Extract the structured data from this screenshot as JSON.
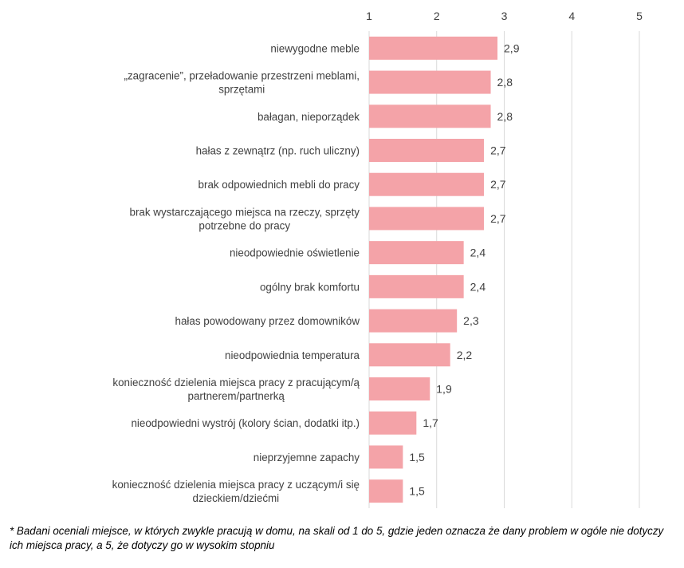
{
  "chart_data": {
    "type": "bar",
    "orientation": "horizontal",
    "categories": [
      "niewygodne meble",
      "„zagracenie”, przeładowanie przestrzeni meblami, sprzętami",
      "bałagan, nieporządek",
      "hałas z zewnątrz (np. ruch uliczny)",
      "brak odpowiednich mebli do pracy",
      "brak wystarczającego miejsca na rzeczy, sprzęty potrzebne do pracy",
      "nieodpowiednie oświetlenie",
      "ogólny brak komfortu",
      "hałas powodowany przez domowników",
      "nieodpowiednia temperatura",
      "konieczność dzielenia miejsca pracy z pracującym/ą partnerem/partnerką",
      "nieodpowiedni wystrój (kolory ścian, dodatki itp.)",
      "nieprzyjemne zapachy",
      "konieczność dzielenia miejsca pracy z uczącym/i się dzieckiem/dziećmi"
    ],
    "values": [
      2.9,
      2.8,
      2.8,
      2.7,
      2.7,
      2.7,
      2.4,
      2.4,
      2.3,
      2.2,
      1.9,
      1.7,
      1.5,
      1.5
    ],
    "value_labels": [
      "2,9",
      "2,8",
      "2,8",
      "2,7",
      "2,7",
      "2,7",
      "2,4",
      "2,4",
      "2,3",
      "2,2",
      "1,9",
      "1,7",
      "1,5",
      "1,5"
    ],
    "category_lines": [
      [
        "niewygodne meble"
      ],
      [
        "„zagracenie”, przeładowanie przestrzeni meblami,",
        "sprzętami"
      ],
      [
        "bałagan, nieporządek"
      ],
      [
        "hałas z zewnątrz (np. ruch uliczny)"
      ],
      [
        "brak odpowiednich mebli do pracy"
      ],
      [
        "brak wystarczającego miejsca na rzeczy, sprzęty",
        "potrzebne do pracy"
      ],
      [
        "nieodpowiednie oświetlenie"
      ],
      [
        "ogólny brak komfortu"
      ],
      [
        "hałas powodowany przez domowników"
      ],
      [
        "nieodpowiednia temperatura"
      ],
      [
        "konieczność dzielenia miejsca pracy z pracującym/ą",
        "partnerem/partnerką"
      ],
      [
        "nieodpowiedni wystrój (kolory ścian, dodatki itp.)"
      ],
      [
        "nieprzyjemne zapachy"
      ],
      [
        "konieczność dzielenia miejsca pracy z uczącym/i się",
        "dzieckiem/dziećmi"
      ]
    ],
    "xlim": [
      1,
      5
    ],
    "x_ticks": [
      "1",
      "2",
      "3",
      "4",
      "5"
    ],
    "x_axis_position": "top",
    "grid": true,
    "bar_color": "#f4a3a8",
    "grid_color": "#d9d9d9"
  },
  "footnote": "* Badani oceniali miejsce, w których zwykle pracują w domu, na skali od 1 do 5, gdzie jeden oznacza że dany problem w ogóle nie dotyczy ich miejsca pracy, a 5, że dotyczy go w wysokim stopniu"
}
